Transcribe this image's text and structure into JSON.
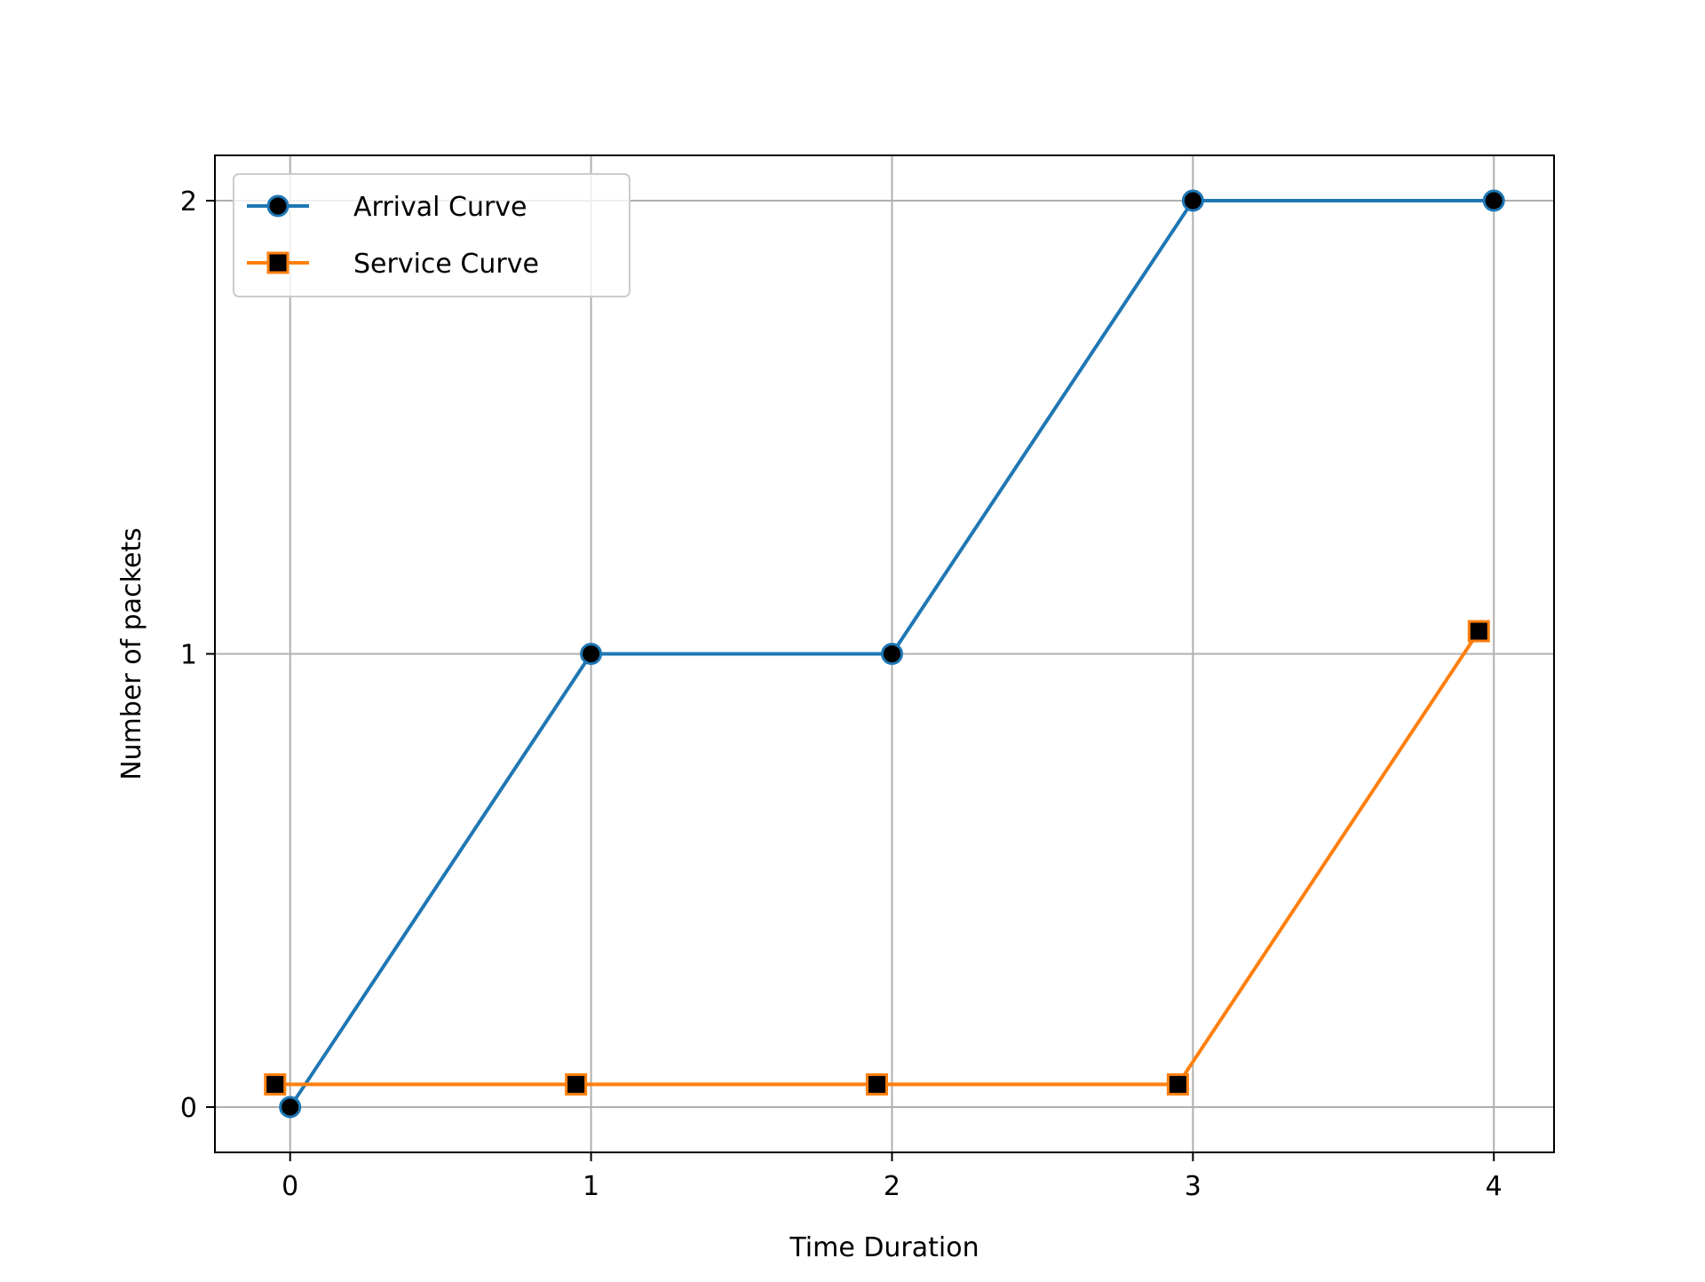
{
  "chart_data": {
    "type": "line",
    "title": "",
    "xlabel": "Time Duration",
    "ylabel": "Number of packets",
    "xlim": [
      -0.25,
      4.2
    ],
    "ylim": [
      -0.1,
      2.1
    ],
    "xticks": [
      0,
      1,
      2,
      3,
      4
    ],
    "yticks": [
      0,
      1,
      2
    ],
    "grid": true,
    "legend_position": "upper-left",
    "series": [
      {
        "name": "Arrival Curve",
        "color": "#1f77b4",
        "marker": "circle",
        "marker_color": "#000000",
        "x": [
          0,
          1,
          2,
          3,
          4
        ],
        "y": [
          0,
          1,
          1,
          2,
          2
        ]
      },
      {
        "name": "Service Curve",
        "color": "#ff7f0e",
        "marker": "square",
        "marker_color": "#000000",
        "x": [
          -0.05,
          0.95,
          1.95,
          2.95,
          3.95
        ],
        "y": [
          0.05,
          0.05,
          0.05,
          0.05,
          1.05
        ]
      }
    ]
  }
}
